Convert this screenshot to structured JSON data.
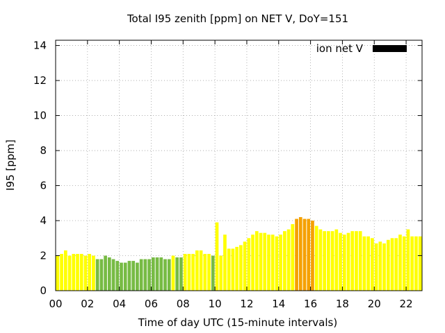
{
  "chart_data": {
    "type": "bar",
    "title": "Total I95 zenith [ppm] on NET V, DoY=151",
    "xlabel": "Time of day UTC (15-minute intervals)",
    "ylabel": "I95 [ppm]",
    "xlim": [
      0,
      23.0
    ],
    "ylim": [
      0,
      14.3
    ],
    "x_ticks": [
      "00",
      "02",
      "04",
      "06",
      "08",
      "10",
      "12",
      "14",
      "16",
      "18",
      "20",
      "22"
    ],
    "y_ticks": [
      "0",
      "2",
      "4",
      "6",
      "8",
      "10",
      "12",
      "14"
    ],
    "grid": true,
    "legend": {
      "label": "ion net V",
      "color": "#000000",
      "position": "top-right"
    },
    "bar_interval_hours": 0.25,
    "colors": {
      "yellow": "#ffff00",
      "green": "#77bb44",
      "orange": "#f5a000"
    },
    "values": [
      2.0,
      2.1,
      2.3,
      2.0,
      2.1,
      2.1,
      2.1,
      2.0,
      2.1,
      2.0,
      1.8,
      1.8,
      2.0,
      1.9,
      1.8,
      1.7,
      1.6,
      1.6,
      1.7,
      1.7,
      1.6,
      1.8,
      1.8,
      1.8,
      1.9,
      1.9,
      1.9,
      1.8,
      1.8,
      2.0,
      1.9,
      1.9,
      2.1,
      2.1,
      2.1,
      2.3,
      2.3,
      2.1,
      2.1,
      2.0,
      3.9,
      2.0,
      3.2,
      2.4,
      2.4,
      2.5,
      2.6,
      2.8,
      3.0,
      3.2,
      3.4,
      3.3,
      3.3,
      3.2,
      3.2,
      3.1,
      3.2,
      3.4,
      3.5,
      3.8,
      4.1,
      4.2,
      4.1,
      4.1,
      4.0,
      3.7,
      3.5,
      3.4,
      3.4,
      3.4,
      3.5,
      3.3,
      3.2,
      3.3,
      3.4,
      3.4,
      3.4,
      3.1,
      3.1,
      3.0,
      2.7,
      2.8,
      2.7,
      2.9,
      3.0,
      3.0,
      3.2,
      3.1,
      3.5,
      3.1,
      3.1,
      3.1
    ],
    "bar_colors": [
      "yellow",
      "yellow",
      "yellow",
      "yellow",
      "yellow",
      "yellow",
      "yellow",
      "yellow",
      "yellow",
      "yellow",
      "green",
      "green",
      "green",
      "green",
      "green",
      "green",
      "green",
      "green",
      "green",
      "green",
      "green",
      "green",
      "green",
      "green",
      "green",
      "green",
      "green",
      "green",
      "green",
      "yellow",
      "green",
      "green",
      "yellow",
      "yellow",
      "yellow",
      "yellow",
      "yellow",
      "yellow",
      "yellow",
      "green",
      "yellow",
      "yellow",
      "yellow",
      "yellow",
      "yellow",
      "yellow",
      "yellow",
      "yellow",
      "yellow",
      "yellow",
      "yellow",
      "yellow",
      "yellow",
      "yellow",
      "yellow",
      "yellow",
      "yellow",
      "yellow",
      "yellow",
      "yellow",
      "orange",
      "orange",
      "orange",
      "orange",
      "orange",
      "yellow",
      "yellow",
      "yellow",
      "yellow",
      "yellow",
      "yellow",
      "yellow",
      "yellow",
      "yellow",
      "yellow",
      "yellow",
      "yellow",
      "yellow",
      "yellow",
      "yellow",
      "yellow",
      "yellow",
      "yellow",
      "yellow",
      "yellow",
      "yellow",
      "yellow",
      "yellow",
      "yellow",
      "yellow",
      "yellow",
      "yellow"
    ]
  }
}
